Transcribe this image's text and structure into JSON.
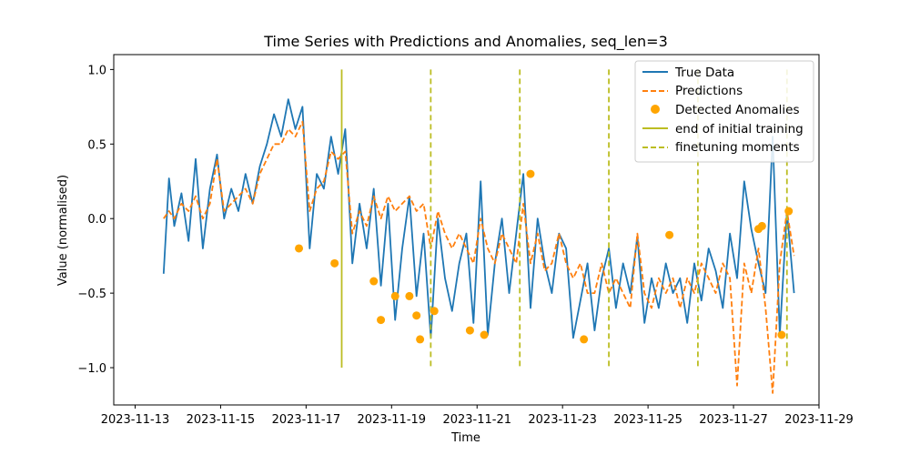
{
  "chart_data": {
    "type": "line",
    "title": "Time Series with Predictions and Anomalies, seq_len=3",
    "xlabel": "Time",
    "ylabel": "Value (normalised)",
    "xlim": [
      "2023-11-12T12:00",
      "2023-11-29T00:00"
    ],
    "ylim": [
      -1.25,
      1.1
    ],
    "x_ticks": [
      "2023-11-13",
      "2023-11-15",
      "2023-11-17",
      "2023-11-19",
      "2023-11-21",
      "2023-11-23",
      "2023-11-25",
      "2023-11-27",
      "2023-11-29"
    ],
    "y_ticks": [
      -1.0,
      -0.5,
      0.0,
      0.5,
      1.0
    ],
    "y_tick_labels": [
      "−1.0",
      "−0.5",
      "0.0",
      "0.5",
      "1.0"
    ],
    "grid": false,
    "legend_position": "top-right",
    "colors": {
      "true_data": "#1f77b4",
      "predictions": "#ff7f0e",
      "anomalies": "#ffa500",
      "initial_training": "#bcbd22",
      "finetuning": "#bcbd22"
    },
    "legend": [
      {
        "label": "True Data",
        "style": "solid-line",
        "color": "#1f77b4"
      },
      {
        "label": "Predictions",
        "style": "dashed-line",
        "color": "#ff7f0e"
      },
      {
        "label": "Detected Anomalies",
        "style": "marker",
        "color": "#ffa500"
      },
      {
        "label": "end of initial training",
        "style": "solid-line",
        "color": "#bcbd22"
      },
      {
        "label": "finetuning moments",
        "style": "dashed-line",
        "color": "#bcbd22"
      }
    ],
    "series": [
      {
        "name": "True Data",
        "x": [
          "2023-11-13T16:00",
          "2023-11-13T19:00",
          "2023-11-13T22:00",
          "2023-11-14T02:00",
          "2023-11-14T06:00",
          "2023-11-14T10:00",
          "2023-11-14T14:00",
          "2023-11-14T18:00",
          "2023-11-14T22:00",
          "2023-11-15T02:00",
          "2023-11-15T06:00",
          "2023-11-15T10:00",
          "2023-11-15T14:00",
          "2023-11-15T18:00",
          "2023-11-15T22:00",
          "2023-11-16T02:00",
          "2023-11-16T06:00",
          "2023-11-16T10:00",
          "2023-11-16T14:00",
          "2023-11-16T18:00",
          "2023-11-16T22:00",
          "2023-11-17T02:00",
          "2023-11-17T06:00",
          "2023-11-17T10:00",
          "2023-11-17T14:00",
          "2023-11-17T18:00",
          "2023-11-17T22:00",
          "2023-11-18T02:00",
          "2023-11-18T06:00",
          "2023-11-18T10:00",
          "2023-11-18T14:00",
          "2023-11-18T18:00",
          "2023-11-18T22:00",
          "2023-11-19T02:00",
          "2023-11-19T06:00",
          "2023-11-19T10:00",
          "2023-11-19T14:00",
          "2023-11-19T18:00",
          "2023-11-19T22:00",
          "2023-11-20T02:00",
          "2023-11-20T06:00",
          "2023-11-20T10:00",
          "2023-11-20T14:00",
          "2023-11-20T18:00",
          "2023-11-20T22:00",
          "2023-11-21T02:00",
          "2023-11-21T06:00",
          "2023-11-21T10:00",
          "2023-11-21T14:00",
          "2023-11-21T18:00",
          "2023-11-21T22:00",
          "2023-11-22T02:00",
          "2023-11-22T06:00",
          "2023-11-22T10:00",
          "2023-11-22T14:00",
          "2023-11-22T18:00",
          "2023-11-22T22:00",
          "2023-11-23T02:00",
          "2023-11-23T06:00",
          "2023-11-23T10:00",
          "2023-11-23T14:00",
          "2023-11-23T18:00",
          "2023-11-23T22:00",
          "2023-11-24T02:00",
          "2023-11-24T06:00",
          "2023-11-24T10:00",
          "2023-11-24T14:00",
          "2023-11-24T18:00",
          "2023-11-24T22:00",
          "2023-11-25T02:00",
          "2023-11-25T06:00",
          "2023-11-25T10:00",
          "2023-11-25T14:00",
          "2023-11-25T18:00",
          "2023-11-25T22:00",
          "2023-11-26T02:00",
          "2023-11-26T06:00",
          "2023-11-26T10:00",
          "2023-11-26T14:00",
          "2023-11-26T18:00",
          "2023-11-26T22:00",
          "2023-11-27T02:00",
          "2023-11-27T06:00",
          "2023-11-27T10:00",
          "2023-11-27T14:00",
          "2023-11-27T18:00",
          "2023-11-27T22:00",
          "2023-11-28T02:00",
          "2023-11-28T06:00",
          "2023-11-28T10:00"
        ],
        "values": [
          -0.37,
          0.27,
          -0.05,
          0.17,
          -0.15,
          0.4,
          -0.2,
          0.2,
          0.43,
          0.0,
          0.2,
          0.05,
          0.3,
          0.1,
          0.35,
          0.5,
          0.7,
          0.55,
          0.8,
          0.6,
          0.75,
          -0.2,
          0.3,
          0.2,
          0.55,
          0.3,
          0.6,
          -0.3,
          0.1,
          -0.2,
          0.2,
          -0.45,
          0.1,
          -0.68,
          -0.2,
          0.15,
          -0.52,
          -0.1,
          -0.8,
          0.0,
          -0.4,
          -0.62,
          -0.3,
          -0.1,
          -0.7,
          0.25,
          -0.78,
          -0.3,
          0.0,
          -0.5,
          -0.1,
          0.3,
          -0.6,
          0.0,
          -0.3,
          -0.5,
          -0.1,
          -0.2,
          -0.8,
          -0.55,
          -0.3,
          -0.75,
          -0.4,
          -0.2,
          -0.6,
          -0.3,
          -0.5,
          -0.12,
          -0.7,
          -0.4,
          -0.6,
          -0.3,
          -0.5,
          -0.4,
          -0.7,
          -0.3,
          -0.55,
          -0.2,
          -0.35,
          -0.6,
          -0.1,
          -0.4,
          0.25,
          -0.07,
          -0.3,
          -0.5,
          0.55,
          -0.78,
          0.05,
          -0.5
        ]
      },
      {
        "name": "Predictions",
        "x": [
          "2023-11-13T16:00",
          "2023-11-13T19:00",
          "2023-11-13T22:00",
          "2023-11-14T02:00",
          "2023-11-14T06:00",
          "2023-11-14T10:00",
          "2023-11-14T14:00",
          "2023-11-14T18:00",
          "2023-11-14T22:00",
          "2023-11-15T02:00",
          "2023-11-15T06:00",
          "2023-11-15T10:00",
          "2023-11-15T14:00",
          "2023-11-15T18:00",
          "2023-11-15T22:00",
          "2023-11-16T02:00",
          "2023-11-16T06:00",
          "2023-11-16T10:00",
          "2023-11-16T14:00",
          "2023-11-16T18:00",
          "2023-11-16T22:00",
          "2023-11-17T02:00",
          "2023-11-17T06:00",
          "2023-11-17T10:00",
          "2023-11-17T14:00",
          "2023-11-17T18:00",
          "2023-11-17T22:00",
          "2023-11-18T02:00",
          "2023-11-18T06:00",
          "2023-11-18T10:00",
          "2023-11-18T14:00",
          "2023-11-18T18:00",
          "2023-11-18T22:00",
          "2023-11-19T02:00",
          "2023-11-19T06:00",
          "2023-11-19T10:00",
          "2023-11-19T14:00",
          "2023-11-19T18:00",
          "2023-11-19T22:00",
          "2023-11-20T02:00",
          "2023-11-20T06:00",
          "2023-11-20T10:00",
          "2023-11-20T14:00",
          "2023-11-20T18:00",
          "2023-11-20T22:00",
          "2023-11-21T02:00",
          "2023-11-21T06:00",
          "2023-11-21T10:00",
          "2023-11-21T14:00",
          "2023-11-21T18:00",
          "2023-11-21T22:00",
          "2023-11-22T02:00",
          "2023-11-22T06:00",
          "2023-11-22T10:00",
          "2023-11-22T14:00",
          "2023-11-22T18:00",
          "2023-11-22T22:00",
          "2023-11-23T02:00",
          "2023-11-23T06:00",
          "2023-11-23T10:00",
          "2023-11-23T14:00",
          "2023-11-23T18:00",
          "2023-11-23T22:00",
          "2023-11-24T02:00",
          "2023-11-24T06:00",
          "2023-11-24T10:00",
          "2023-11-24T14:00",
          "2023-11-24T18:00",
          "2023-11-24T22:00",
          "2023-11-25T02:00",
          "2023-11-25T06:00",
          "2023-11-25T10:00",
          "2023-11-25T14:00",
          "2023-11-25T18:00",
          "2023-11-25T22:00",
          "2023-11-26T02:00",
          "2023-11-26T06:00",
          "2023-11-26T10:00",
          "2023-11-26T14:00",
          "2023-11-26T18:00",
          "2023-11-26T22:00",
          "2023-11-27T02:00",
          "2023-11-27T06:00",
          "2023-11-27T10:00",
          "2023-11-27T14:00",
          "2023-11-27T18:00",
          "2023-11-27T22:00",
          "2023-11-28T02:00",
          "2023-11-28T06:00",
          "2023-11-28T10:00"
        ],
        "values": [
          0.0,
          0.05,
          0.0,
          0.1,
          0.05,
          0.15,
          0.0,
          0.1,
          0.4,
          0.05,
          0.1,
          0.15,
          0.2,
          0.1,
          0.3,
          0.4,
          0.5,
          0.5,
          0.6,
          0.55,
          0.65,
          0.05,
          0.2,
          0.25,
          0.45,
          0.4,
          0.45,
          -0.1,
          0.05,
          -0.05,
          0.15,
          0.0,
          0.15,
          0.05,
          0.1,
          0.15,
          0.05,
          0.1,
          -0.2,
          0.05,
          -0.1,
          -0.2,
          -0.1,
          -0.2,
          -0.3,
          0.0,
          -0.2,
          -0.3,
          -0.1,
          -0.2,
          -0.3,
          0.1,
          -0.3,
          -0.1,
          -0.35,
          -0.3,
          -0.1,
          -0.3,
          -0.4,
          -0.3,
          -0.5,
          -0.5,
          -0.3,
          -0.5,
          -0.4,
          -0.5,
          -0.6,
          -0.1,
          -0.5,
          -0.6,
          -0.4,
          -0.5,
          -0.4,
          -0.6,
          -0.4,
          -0.5,
          -0.3,
          -0.4,
          -0.5,
          -0.3,
          -0.4,
          -1.12,
          -0.3,
          -0.5,
          -0.2,
          -0.6,
          -1.17,
          -0.3,
          0.05,
          -0.25
        ]
      }
    ],
    "anomalies": {
      "name": "Detected Anomalies",
      "x": [
        "2023-11-16T20:00",
        "2023-11-17T16:00",
        "2023-11-18T14:00",
        "2023-11-18T18:00",
        "2023-11-19T02:00",
        "2023-11-19T10:00",
        "2023-11-19T14:00",
        "2023-11-19T16:00",
        "2023-11-20T00:00",
        "2023-11-20T20:00",
        "2023-11-21T04:00",
        "2023-11-22T06:00",
        "2023-11-23T12:00",
        "2023-11-25T12:00",
        "2023-11-27T14:00",
        "2023-11-27T16:00",
        "2023-11-28T03:00",
        "2023-11-28T07:00"
      ],
      "values": [
        -0.2,
        -0.3,
        -0.42,
        -0.68,
        -0.52,
        -0.52,
        -0.65,
        -0.81,
        -0.62,
        -0.75,
        -0.78,
        0.3,
        -0.81,
        -0.11,
        -0.07,
        -0.05,
        -0.78,
        0.05
      ]
    },
    "vlines": [
      {
        "name": "end of initial training",
        "x": "2023-11-17T20:00",
        "ymin": -1.0,
        "ymax": 1.0,
        "style": "solid"
      },
      {
        "name": "finetuning moments",
        "x": "2023-11-19T22:00",
        "ymin": -1.0,
        "ymax": 1.0,
        "style": "dashed"
      },
      {
        "name": "finetuning moments",
        "x": "2023-11-22T00:00",
        "ymin": -1.0,
        "ymax": 1.0,
        "style": "dashed"
      },
      {
        "name": "finetuning moments",
        "x": "2023-11-24T02:00",
        "ymin": -1.0,
        "ymax": 1.0,
        "style": "dashed"
      },
      {
        "name": "finetuning moments",
        "x": "2023-11-26T04:00",
        "ymin": -1.0,
        "ymax": 1.0,
        "style": "dashed"
      },
      {
        "name": "finetuning moments",
        "x": "2023-11-28T06:00",
        "ymin": -1.0,
        "ymax": 1.0,
        "style": "dashed"
      }
    ]
  }
}
